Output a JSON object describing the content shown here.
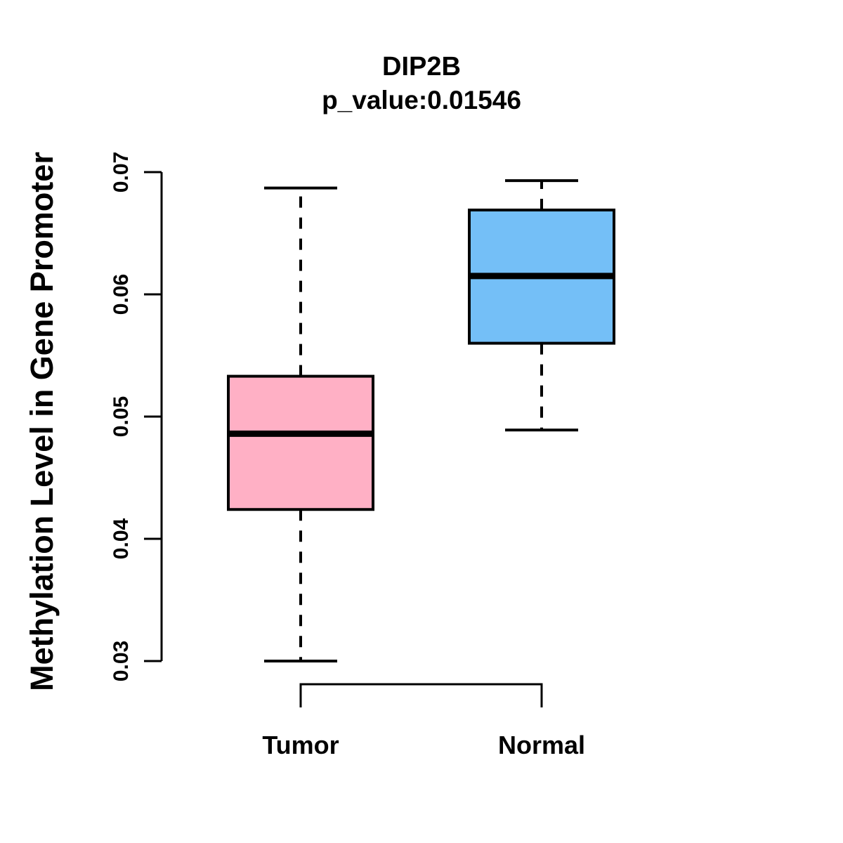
{
  "figure": {
    "background": "#FFFFFF",
    "text_color": "#000000"
  },
  "chart_data": {
    "type": "boxplot",
    "title": "DIP2B",
    "subtitle": "p_value:0.01546",
    "ylabel": "Methylation Level in Gene Promoter",
    "xlabel": "",
    "categories": [
      "Tumor",
      "Normal"
    ],
    "ylim": [
      0.03,
      0.07
    ],
    "yticks": [
      0.03,
      0.04,
      0.05,
      0.06,
      0.07
    ],
    "ytick_labels": [
      "0.03",
      "0.04",
      "0.05",
      "0.06",
      "0.07"
    ],
    "grid": false,
    "legend": "none",
    "orientation": "vertical",
    "whisker_style": "dashed",
    "series": [
      {
        "name": "Tumor",
        "fill": "#FFB0C5",
        "stroke": "#000000",
        "whisker_low": 0.03,
        "q1": 0.0424,
        "median": 0.0486,
        "q3": 0.0533,
        "whisker_high": 0.0687
      },
      {
        "name": "Normal",
        "fill": "#74BFF7",
        "stroke": "#000000",
        "whisker_low": 0.0489,
        "q1": 0.056,
        "median": 0.0615,
        "q3": 0.0669,
        "whisker_high": 0.0693
      }
    ],
    "annotations": {
      "comparison_bracket_between": [
        "Tumor",
        "Normal"
      ]
    }
  }
}
